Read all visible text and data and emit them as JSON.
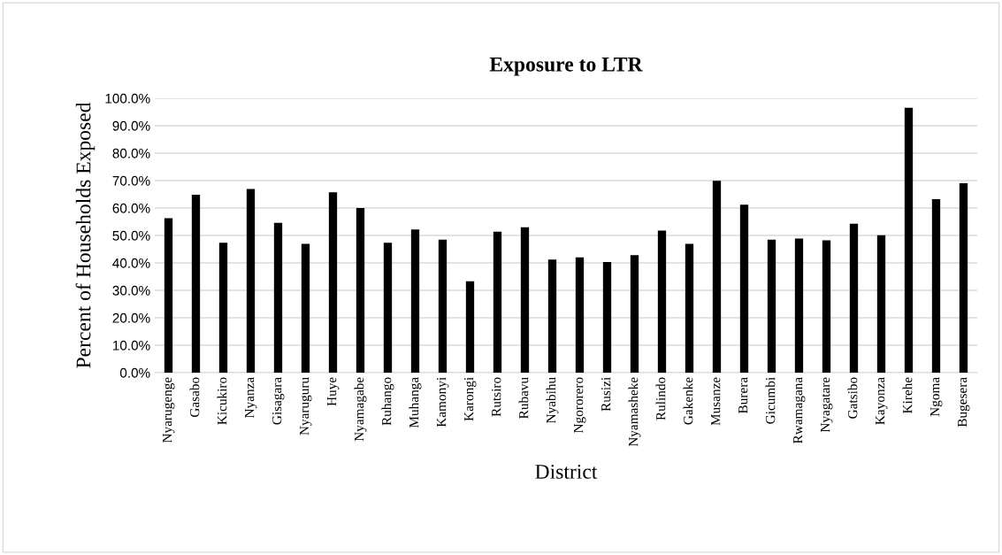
{
  "chart_data": {
    "type": "bar",
    "title": "Exposure to LTR",
    "xlabel": "District",
    "ylabel": "Percent of Households Exposed",
    "categories": [
      "Nyarugenge",
      "Gasabo",
      "Kicukiro",
      "Nyanza",
      "Gisagara",
      "Nyaruguru",
      "Huye",
      "Nyamagabe",
      "Ruhango",
      "Muhanga",
      "Kamonyi",
      "Karongi",
      "Rutsiro",
      "Rubavu",
      "Nyabihu",
      "Ngororero",
      "Rusizi",
      "Nyamasheke",
      "Rulindo",
      "Gakenke",
      "Musanze",
      "Burera",
      "Gicumbi",
      "Rwamagana",
      "Nyagatare",
      "Gatsibo",
      "Kayonza",
      "Kirehe",
      "Ngoma",
      "Bugesera"
    ],
    "values": [
      56.3,
      64.8,
      47.3,
      66.9,
      54.6,
      46.9,
      65.7,
      60.0,
      47.3,
      52.2,
      48.5,
      33.3,
      51.4,
      53.0,
      41.2,
      42.0,
      40.3,
      42.8,
      51.8,
      46.9,
      69.9,
      61.2,
      48.5,
      48.9,
      48.2,
      54.3,
      50.1,
      96.5,
      63.2,
      69.0
    ],
    "color": "#000000",
    "ylim": [
      0,
      100
    ],
    "yticks": [
      {
        "value": 0,
        "label": "0.0%"
      },
      {
        "value": 10,
        "label": "10.0%"
      },
      {
        "value": 20,
        "label": "20.0%"
      },
      {
        "value": 30,
        "label": "30.0%"
      },
      {
        "value": 40,
        "label": "40.0%"
      },
      {
        "value": 50,
        "label": "50.0%"
      },
      {
        "value": 60,
        "label": "60.0%"
      },
      {
        "value": 70,
        "label": "70.0%"
      },
      {
        "value": 80,
        "label": "80.0%"
      },
      {
        "value": 90,
        "label": "90.0%"
      },
      {
        "value": 100,
        "label": "100.0%"
      }
    ],
    "grid": "y",
    "legend": false
  }
}
